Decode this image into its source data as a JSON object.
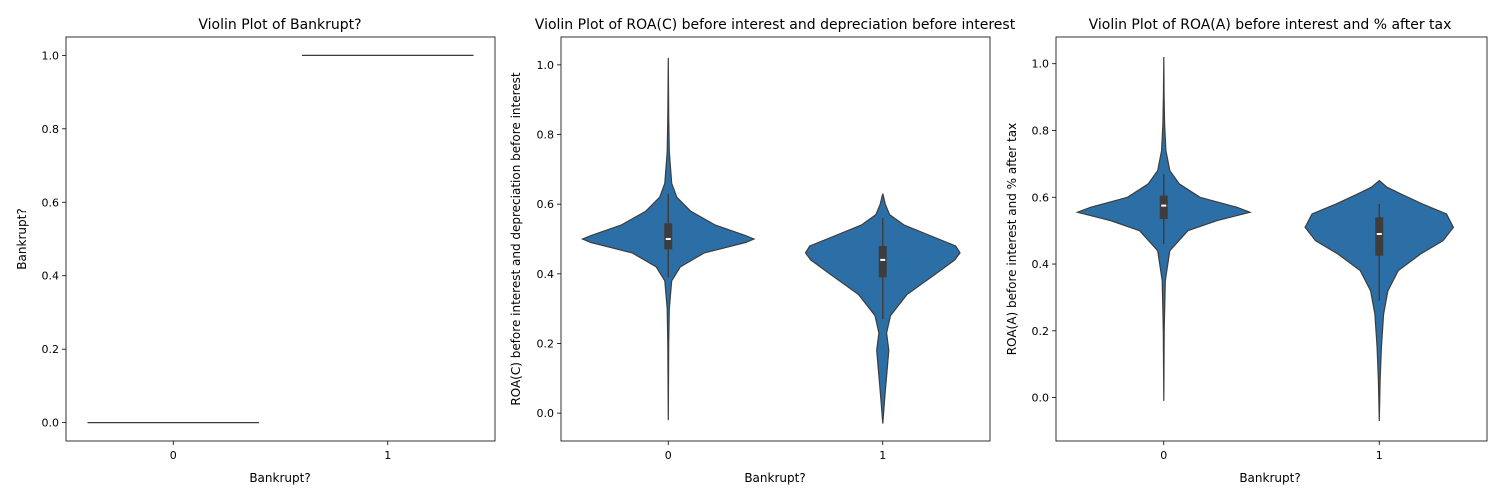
{
  "chart_data": [
    {
      "type": "violin",
      "title": "Violin Plot of Bankrupt?",
      "xlabel": "Bankrupt?",
      "ylabel": "Bankrupt?",
      "categories": [
        "0",
        "1"
      ],
      "ylim": [
        -0.05,
        1.05
      ],
      "yticks": [
        "0.0",
        "0.2",
        "0.4",
        "0.6",
        "0.8",
        "1.0"
      ],
      "violins": [
        {
          "category": "0",
          "min": 0.0,
          "max": 0.0,
          "q1": 0.0,
          "median": 0.0,
          "q3": 0.0,
          "whisker_low": 0.0,
          "whisker_high": 0.0,
          "mode": 0.0
        },
        {
          "category": "1",
          "min": 1.0,
          "max": 1.0,
          "q1": 1.0,
          "median": 1.0,
          "q3": 1.0,
          "whisker_low": 1.0,
          "whisker_high": 1.0,
          "mode": 1.0
        }
      ],
      "color": "#2c6fa6"
    },
    {
      "type": "violin",
      "title": "Violin Plot of  ROA(C) before interest and depreciation before interest",
      "xlabel": "Bankrupt?",
      "ylabel": "ROA(C) before interest and depreciation before interest",
      "categories": [
        "0",
        "1"
      ],
      "ylim": [
        -0.08,
        1.08
      ],
      "yticks": [
        "0.0",
        "0.2",
        "0.4",
        "0.6",
        "0.8",
        "1.0"
      ],
      "violins": [
        {
          "category": "0",
          "min": -0.02,
          "max": 1.02,
          "q1": 0.47,
          "median": 0.5,
          "q3": 0.545,
          "whisker_low": 0.39,
          "whisker_high": 0.63,
          "mode": 0.5
        },
        {
          "category": "1",
          "min": -0.03,
          "max": 0.63,
          "q1": 0.39,
          "median": 0.44,
          "q3": 0.48,
          "whisker_low": 0.27,
          "whisker_high": 0.56,
          "mode": 0.46
        }
      ],
      "color": "#2c6fa6"
    },
    {
      "type": "violin",
      "title": "Violin Plot of  ROA(A) before interest and % after tax",
      "xlabel": "Bankrupt?",
      "ylabel": "ROA(A) before interest and % after tax",
      "categories": [
        "0",
        "1"
      ],
      "ylim": [
        -0.13,
        1.08
      ],
      "yticks": [
        "0.0",
        "0.2",
        "0.4",
        "0.6",
        "0.8",
        "1.0"
      ],
      "violins": [
        {
          "category": "0",
          "min": -0.01,
          "max": 1.02,
          "q1": 0.535,
          "median": 0.575,
          "q3": 0.605,
          "whisker_low": 0.46,
          "whisker_high": 0.67,
          "mode": 0.56
        },
        {
          "category": "1",
          "min": -0.07,
          "max": 0.65,
          "q1": 0.425,
          "median": 0.49,
          "q3": 0.54,
          "whisker_low": 0.29,
          "whisker_high": 0.58,
          "mode": 0.51
        }
      ],
      "color": "#2c6fa6"
    }
  ]
}
